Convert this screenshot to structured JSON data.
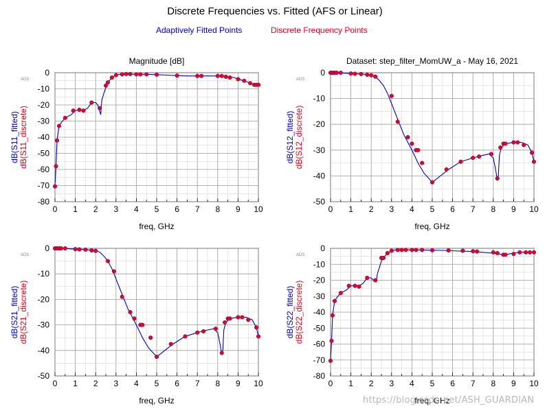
{
  "figure": {
    "title": "Discrete Frequencies vs. Fitted (AFS or Linear)",
    "legend_fitted": "Adaptively Fitted Points",
    "legend_discrete": "Discrete Frequency Points",
    "watermark": "https://blog.csdn.net/ASH_GUARDIAN",
    "colors": {
      "fitted": "#0000cc",
      "discrete": "#e8001c",
      "grid": "#9a9a9a"
    }
  },
  "chart_data": [
    {
      "type": "line",
      "id": "s11",
      "title": "Magnitude [dB]",
      "badge": "ADS",
      "xlabel": "freq, GHz",
      "ylabel_fitted": "dB(S11_fitted)",
      "ylabel_discrete": "dB(S11_discrete)",
      "xlim": [
        0,
        10
      ],
      "ylim": [
        -80,
        0
      ],
      "xticks": [
        "0",
        "1",
        "2",
        "3",
        "4",
        "5",
        "6",
        "7",
        "8",
        "9",
        "10"
      ],
      "yticks": [
        "0",
        "-10",
        "-20",
        "-30",
        "-40",
        "-50",
        "-60",
        "-70",
        "-80"
      ],
      "grid": true,
      "series": [
        {
          "name": "dB(S11_fitted)",
          "x": [
            0,
            0.05,
            0.1,
            0.2,
            0.3,
            0.5,
            0.8,
            1.0,
            1.2,
            1.4,
            1.6,
            1.8,
            2.0,
            2.1,
            2.2,
            2.25,
            2.3,
            2.4,
            2.5,
            2.6,
            2.8,
            3.0,
            3.2,
            3.5,
            4.0,
            4.5,
            5.0,
            5.5,
            6.0,
            6.5,
            7.0,
            7.5,
            8.0,
            8.2,
            8.5,
            8.8,
            9.0,
            9.3,
            9.6,
            9.8,
            10.0
          ],
          "y": [
            -70,
            -58,
            -42,
            -33,
            -31,
            -28,
            -26,
            -23.5,
            -23,
            -23.5,
            -22,
            -18.5,
            -18.5,
            -20,
            -24,
            -26,
            -17,
            -13,
            -9,
            -6,
            -3,
            -1.5,
            -1,
            -0.8,
            -1,
            -1,
            -1.2,
            -1.5,
            -1.8,
            -2,
            -2,
            -2,
            -2,
            -2,
            -2.5,
            -3,
            -4,
            -5,
            -6.5,
            -7.5,
            -7.5
          ]
        },
        {
          "name": "dB(S11_discrete)",
          "x": [
            0,
            0.05,
            0.1,
            0.2,
            0.5,
            0.9,
            1.2,
            1.4,
            1.8,
            2.2,
            2.5,
            2.6,
            2.8,
            3.0,
            3.3,
            3.5,
            3.7,
            4.0,
            4.2,
            4.5,
            5.0,
            6.0,
            7.0,
            7.2,
            8.0,
            8.2,
            8.4,
            8.6,
            9.0,
            9.3,
            9.6,
            9.8,
            9.9,
            10.0
          ],
          "y": [
            -70.5,
            -58,
            -42,
            -33,
            -28,
            -23.5,
            -23,
            -23.5,
            -18.5,
            -22,
            -8,
            -6,
            -3,
            -1.5,
            -1,
            -0.8,
            -0.8,
            -1,
            -1,
            -1,
            -1.2,
            -1.8,
            -2,
            -2,
            -2,
            -2,
            -2.5,
            -3,
            -4,
            -5,
            -6.5,
            -7.5,
            -7.5,
            -7.5
          ]
        }
      ]
    },
    {
      "type": "line",
      "id": "s12",
      "title": "Dataset: step_filter_MomUW_a - May 16, 2021",
      "badge": "ADS",
      "xlabel": "freq, GHz",
      "ylabel_fitted": "dB(S12_fitted)",
      "ylabel_discrete": "dB(S12_discrete)",
      "xlim": [
        0,
        10
      ],
      "ylim": [
        -50,
        0
      ],
      "xticks": [
        "0",
        "1",
        "2",
        "3",
        "4",
        "5",
        "6",
        "7",
        "8",
        "9",
        "10"
      ],
      "yticks": [
        "0",
        "-10",
        "-20",
        "-30",
        "-40",
        "-50"
      ],
      "grid": true,
      "series": [
        {
          "name": "dB(S12_fitted)",
          "x": [
            0,
            0.5,
            1.0,
            1.5,
            2.0,
            2.2,
            2.4,
            2.6,
            2.8,
            3.0,
            3.2,
            3.4,
            3.6,
            3.8,
            4.0,
            4.3,
            4.6,
            5.0,
            5.4,
            5.8,
            6.4,
            7.0,
            7.5,
            7.8,
            8.0,
            8.1,
            8.2,
            8.25,
            8.3,
            8.4,
            8.6,
            9.0,
            9.4,
            9.7,
            9.9,
            10.0
          ],
          "y": [
            0,
            -0.1,
            -0.3,
            -0.5,
            -0.8,
            -1.5,
            -3,
            -5,
            -8,
            -12,
            -16,
            -20,
            -24,
            -27,
            -30,
            -35,
            -39,
            -42.5,
            -40,
            -37.5,
            -34.5,
            -33,
            -32,
            -31.5,
            -33,
            -37,
            -41.5,
            -40,
            -32,
            -29,
            -27.5,
            -27,
            -27,
            -28,
            -31,
            -34.5
          ]
        },
        {
          "name": "dB(S12_discrete)",
          "x": [
            0,
            0.1,
            0.2,
            0.3,
            0.5,
            1.0,
            1.2,
            1.5,
            1.8,
            2.0,
            2.2,
            3.0,
            3.3,
            3.8,
            4.0,
            4.2,
            4.3,
            4.5,
            5.0,
            5.7,
            6.4,
            7.0,
            7.3,
            7.9,
            8.2,
            8.35,
            8.5,
            8.6,
            9.0,
            9.2,
            9.5,
            9.9,
            10.0
          ],
          "y": [
            0,
            0,
            0,
            0,
            0,
            -0.3,
            -0.4,
            -0.5,
            -0.8,
            -1,
            -1.5,
            -9,
            -19,
            -25,
            -27.5,
            -30,
            -30,
            -35,
            -42.5,
            -37.5,
            -34.5,
            -33,
            -32.5,
            -31.5,
            -41,
            -29,
            -27.5,
            -27.5,
            -27,
            -27,
            -28,
            -31,
            -34.5
          ]
        }
      ]
    },
    {
      "type": "line",
      "id": "s21",
      "title": "",
      "badge": "ADS",
      "xlabel": "freq, GHz",
      "ylabel_fitted": "dB(S21_fitted)",
      "ylabel_discrete": "dB(S21_discrete)",
      "xlim": [
        0,
        10
      ],
      "ylim": [
        -50,
        0
      ],
      "xticks": [
        "0",
        "1",
        "2",
        "3",
        "4",
        "5",
        "6",
        "7",
        "8",
        "9",
        "10"
      ],
      "yticks": [
        "0",
        "-10",
        "-20",
        "-30",
        "-40",
        "-50"
      ],
      "grid": true,
      "series": [
        {
          "name": "dB(S21_fitted)",
          "x": [
            0,
            0.5,
            1.0,
            1.5,
            2.0,
            2.2,
            2.4,
            2.6,
            2.8,
            3.0,
            3.2,
            3.4,
            3.6,
            3.8,
            4.0,
            4.3,
            4.6,
            5.0,
            5.4,
            5.8,
            6.4,
            7.0,
            7.5,
            7.8,
            8.0,
            8.1,
            8.2,
            8.25,
            8.3,
            8.4,
            8.6,
            9.0,
            9.4,
            9.7,
            9.9,
            10.0
          ],
          "y": [
            0,
            -0.1,
            -0.3,
            -0.5,
            -0.8,
            -1.5,
            -3,
            -5,
            -8,
            -12,
            -16,
            -20,
            -24,
            -27,
            -30,
            -35,
            -39,
            -42.5,
            -40,
            -37.5,
            -34.5,
            -33,
            -32,
            -31.5,
            -33,
            -37,
            -41.5,
            -40,
            -32,
            -29,
            -27.5,
            -27,
            -27,
            -28,
            -31,
            -34.5
          ]
        },
        {
          "name": "dB(S21_discrete)",
          "x": [
            0,
            0.1,
            0.2,
            0.3,
            0.5,
            1.0,
            1.2,
            1.5,
            1.8,
            2.0,
            2.6,
            2.9,
            3.3,
            3.7,
            3.9,
            4.2,
            4.3,
            4.7,
            5.0,
            5.7,
            6.4,
            7.0,
            7.3,
            7.9,
            8.2,
            8.35,
            8.5,
            8.6,
            9.0,
            9.2,
            9.5,
            9.9,
            10.0
          ],
          "y": [
            0,
            0,
            0,
            0,
            0,
            -0.3,
            -0.4,
            -0.5,
            -0.8,
            -1,
            -5,
            -9,
            -19,
            -25,
            -27.5,
            -30,
            -30,
            -35,
            -42.5,
            -37.5,
            -34.5,
            -33,
            -32.5,
            -31.5,
            -41,
            -29,
            -27.5,
            -27.5,
            -27,
            -27,
            -28,
            -31,
            -34.5
          ]
        }
      ]
    },
    {
      "type": "line",
      "id": "s22",
      "title": "",
      "badge": "ADS",
      "xlabel": "freq, GHz",
      "ylabel_fitted": "dB(S22_fitted)",
      "ylabel_discrete": "dB(S22_discrete)",
      "xlim": [
        0,
        10
      ],
      "ylim": [
        -80,
        0
      ],
      "xticks": [
        "0",
        "1",
        "2",
        "3",
        "4",
        "5",
        "6",
        "7",
        "8",
        "9",
        "10"
      ],
      "yticks": [
        "0",
        "-10",
        "-20",
        "-30",
        "-40",
        "-50",
        "-60",
        "-70",
        "-80"
      ],
      "grid": true,
      "series": [
        {
          "name": "dB(S22_fitted)",
          "x": [
            0,
            0.05,
            0.1,
            0.2,
            0.3,
            0.5,
            0.8,
            1.0,
            1.2,
            1.4,
            1.6,
            1.8,
            2.0,
            2.1,
            2.2,
            2.25,
            2.3,
            2.4,
            2.5,
            2.6,
            2.8,
            3.0,
            3.2,
            3.5,
            4.0,
            4.5,
            5.0,
            5.5,
            6.0,
            6.5,
            7.0,
            7.5,
            8.0,
            8.2,
            8.5,
            8.8,
            9.0,
            9.3,
            9.6,
            9.8,
            10.0
          ],
          "y": [
            -70,
            -58,
            -42,
            -33,
            -31,
            -28,
            -26,
            -23.5,
            -23,
            -23.5,
            -22,
            -18.5,
            -18.5,
            -20,
            -21,
            -21,
            -16,
            -12,
            -8,
            -6,
            -3,
            -1.5,
            -1,
            -0.8,
            -1,
            -1,
            -1.2,
            -1.3,
            -1.5,
            -1.8,
            -2,
            -2.5,
            -3,
            -3.5,
            -4,
            -3.5,
            -3,
            -2.5,
            -2.5,
            -2.5,
            -2.5
          ]
        },
        {
          "name": "dB(S22_discrete)",
          "x": [
            0,
            0.05,
            0.1,
            0.2,
            0.5,
            0.9,
            1.2,
            1.4,
            1.8,
            2.2,
            2.5,
            2.6,
            2.8,
            3.0,
            3.3,
            3.5,
            3.7,
            4.0,
            4.2,
            4.5,
            5.0,
            5.8,
            6.5,
            7.0,
            7.2,
            8.0,
            8.2,
            8.5,
            8.6,
            9.0,
            9.3,
            9.6,
            9.8,
            10.0
          ],
          "y": [
            -70.5,
            -58,
            -42,
            -33,
            -28,
            -23.5,
            -23.5,
            -24,
            -18.5,
            -20,
            -6,
            -6,
            -3,
            -1.5,
            -1,
            -1,
            -1,
            -1,
            -1,
            -1,
            -1.2,
            -1.3,
            -1.5,
            -1.8,
            -2,
            -2.5,
            -3,
            -4,
            -4,
            -3.5,
            -2.5,
            -2.5,
            -2.5,
            -2.5
          ]
        }
      ]
    }
  ]
}
